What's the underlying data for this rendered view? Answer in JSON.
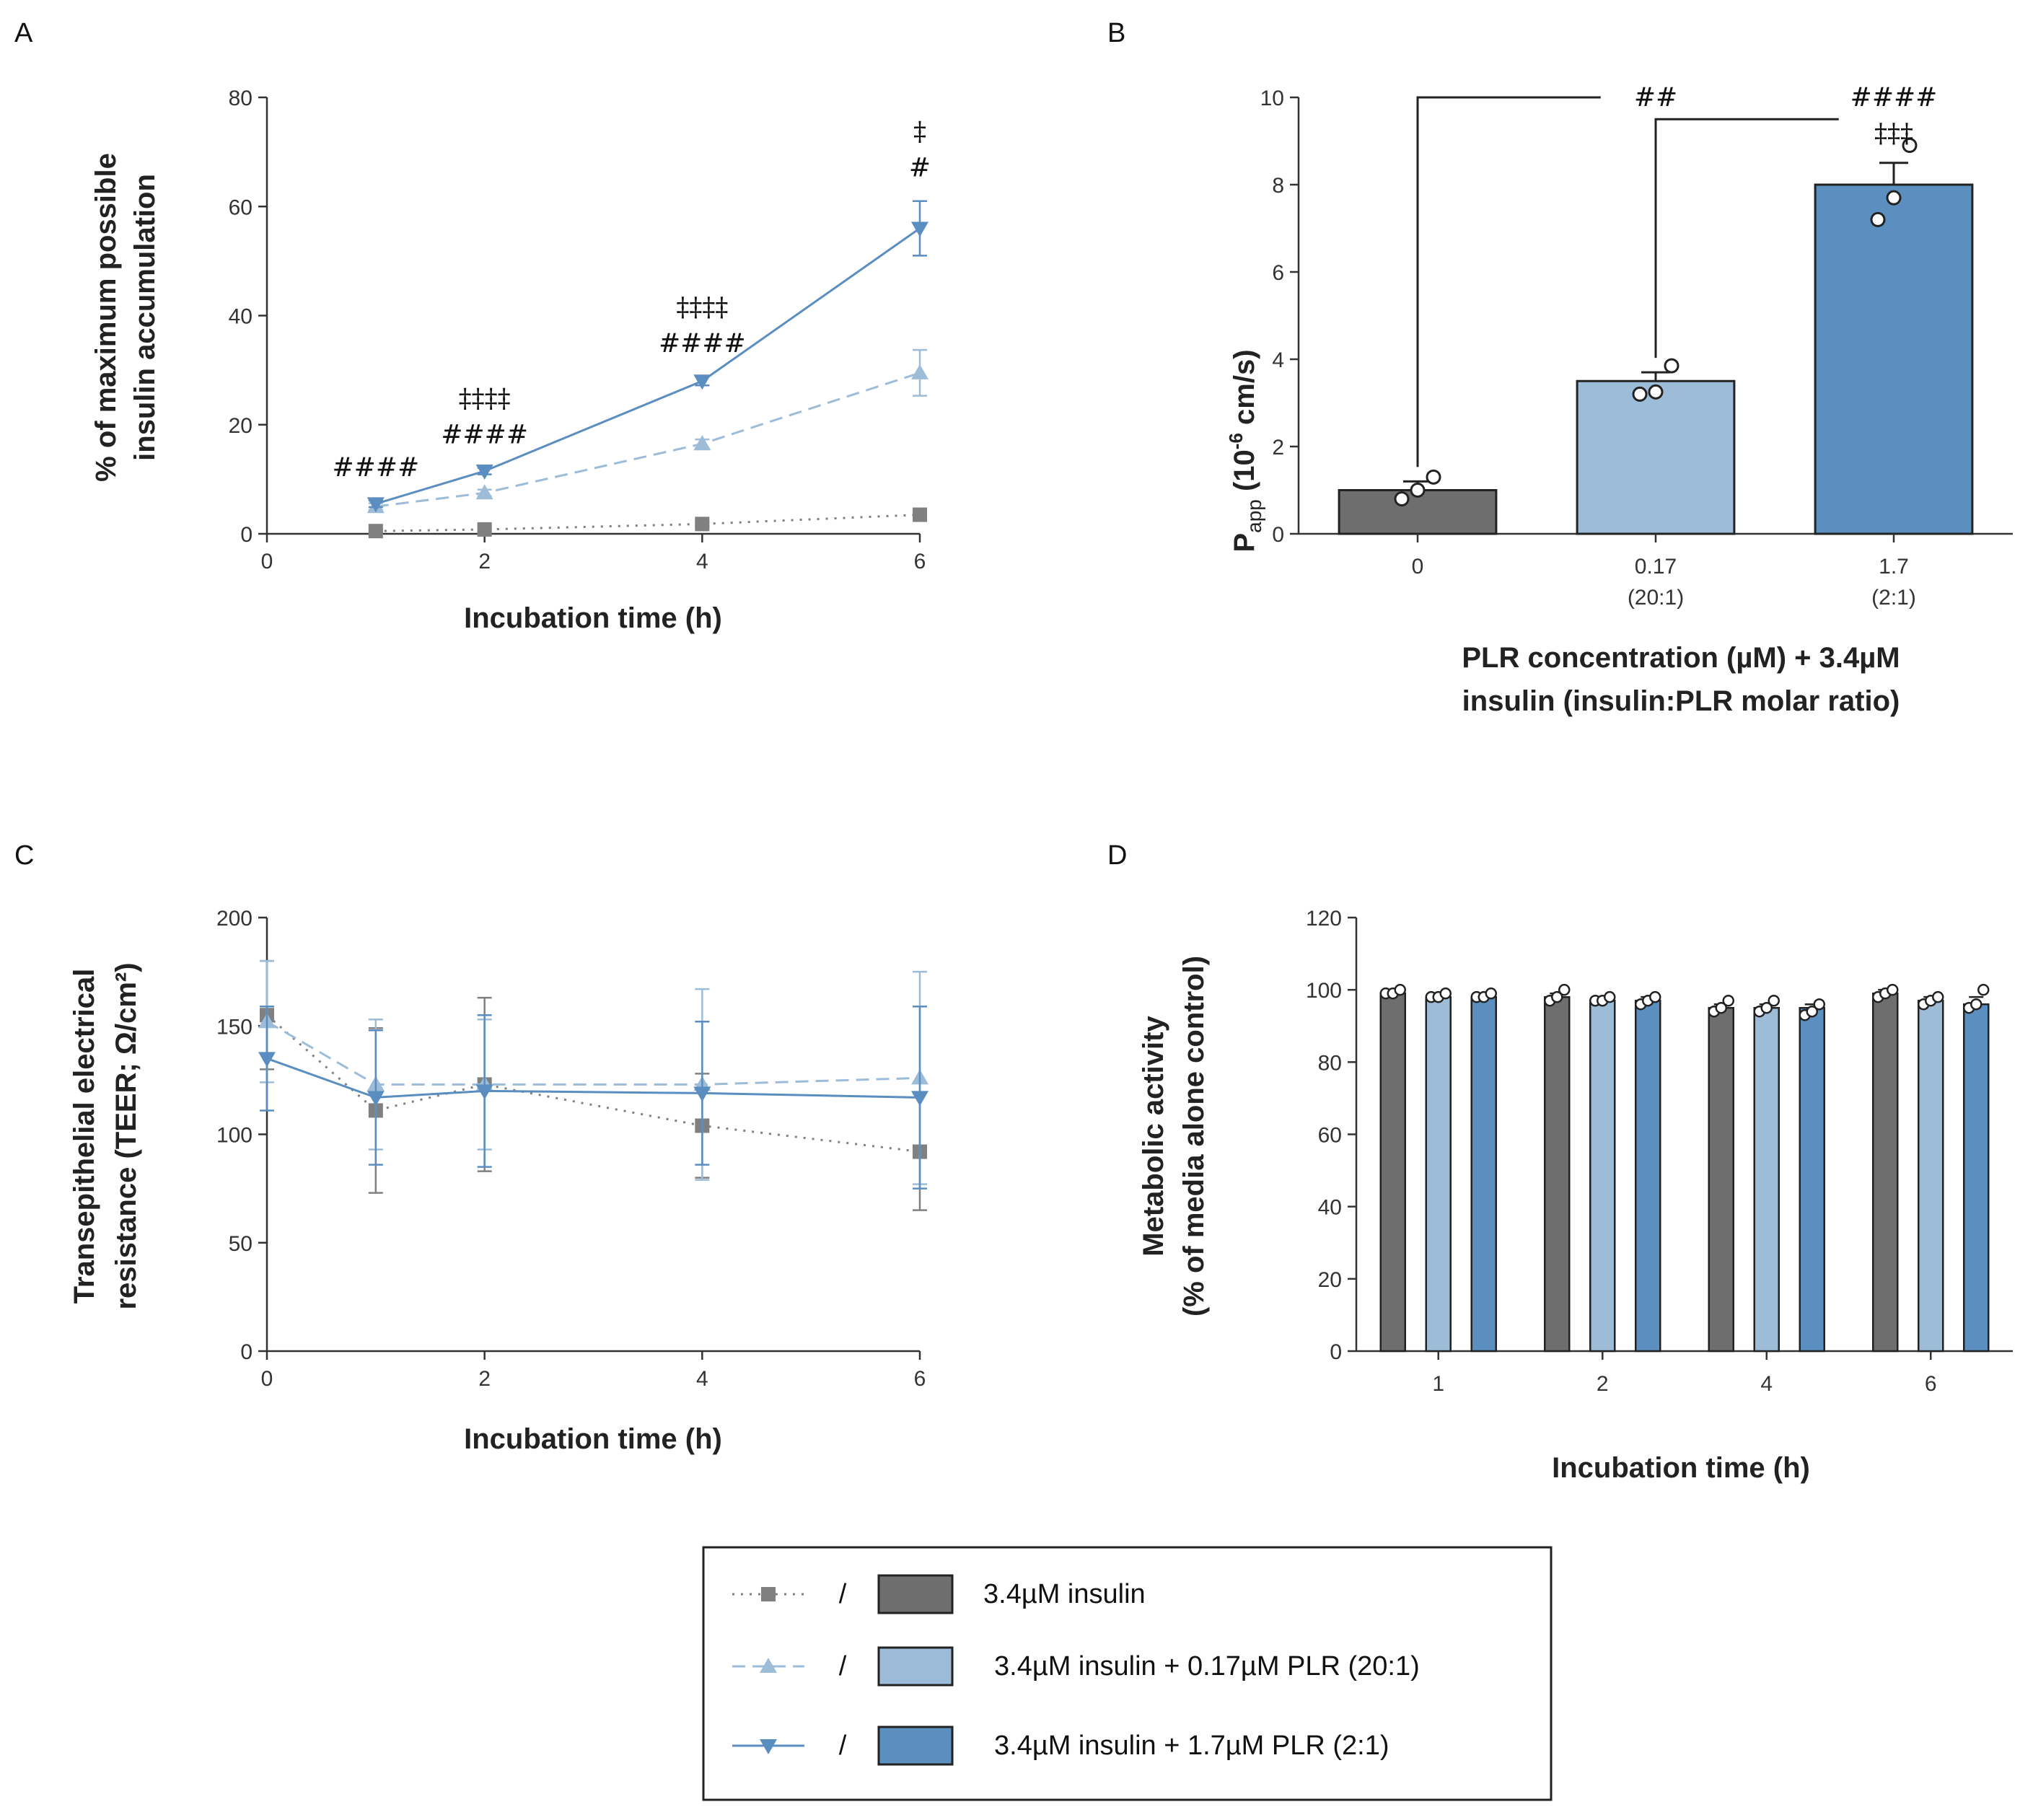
{
  "colors": {
    "insulin": "#808080",
    "insulin_dark_bar": "#6e6e6e",
    "plr_low": "#9dbcd8",
    "plr_high": "#5a8fbf",
    "line_high": "#5b8ec0",
    "axis": "#333333"
  },
  "chart_data": [
    {
      "id": "A",
      "type": "line",
      "panel_label": "A",
      "xlabel": "Incubation time (h)",
      "ylabel_lines": [
        "% of maximum possible",
        "insulin accumulation"
      ],
      "xlim": [
        0,
        6
      ],
      "ylim": [
        0,
        80
      ],
      "xticks": [
        "0",
        "2",
        "4",
        "6"
      ],
      "yticks": [
        "0",
        "20",
        "40",
        "60",
        "80"
      ],
      "x": [
        1,
        2,
        4,
        6
      ],
      "series": [
        {
          "name": "3.4µM insulin",
          "values": [
            0.5,
            0.8,
            1.8,
            3.5
          ],
          "err": [
            0.3,
            0.3,
            0.4,
            0.6
          ],
          "marker": "square",
          "dash": "dotted"
        },
        {
          "name": "3.4µM insulin + 0.17µM PLR (20:1)",
          "values": [
            5.0,
            7.5,
            16.5,
            29.5
          ],
          "err": [
            0.6,
            0.6,
            0.8,
            4.2
          ],
          "marker": "triangle-up",
          "dash": "dashed"
        },
        {
          "name": "3.4µM insulin + 1.7µM PLR (2:1)",
          "values": [
            5.5,
            11.5,
            28.0,
            56.0
          ],
          "err": [
            0.6,
            0.6,
            0.8,
            5.0
          ],
          "marker": "triangle-down",
          "dash": "solid"
        }
      ],
      "annotations": [
        {
          "x": 1,
          "lines": [
            "####"
          ]
        },
        {
          "x": 2,
          "lines": [
            "‡‡‡‡",
            "####"
          ]
        },
        {
          "x": 4,
          "lines": [
            "‡‡‡‡",
            "####"
          ]
        },
        {
          "x": 6,
          "lines": [
            "‡",
            "#"
          ]
        }
      ]
    },
    {
      "id": "B",
      "type": "bar",
      "panel_label": "B",
      "xlabel_lines": [
        "PLR concentration (µM) + 3.4µM",
        "insulin (insulin:PLR molar ratio)"
      ],
      "ylabel_main": "P",
      "ylabel_sub": "app",
      "ylabel_mid": " (10",
      "ylabel_sup": "-6",
      "ylabel_end": " cm/s)",
      "ylim": [
        0,
        10
      ],
      "yticks": [
        "0",
        "2",
        "4",
        "6",
        "8",
        "10"
      ],
      "categories": [
        "0",
        "0.17",
        "1.7"
      ],
      "category_sublabels": [
        "",
        "(20:1)",
        "(2:1)"
      ],
      "values": [
        1.0,
        3.5,
        8.0
      ],
      "err": [
        0.2,
        0.2,
        0.5
      ],
      "points": [
        [
          0.8,
          1.0,
          1.3
        ],
        [
          3.2,
          3.25,
          3.85
        ],
        [
          7.2,
          7.7,
          8.9
        ]
      ],
      "brackets": [
        {
          "from": 0,
          "to": 1,
          "y": 10.0,
          "label": "##"
        },
        {
          "from": 1,
          "to": 2,
          "y": 9.5,
          "label": ""
        }
      ],
      "annotations": [
        {
          "category": 2,
          "lines": [
            "####",
            "‡‡‡"
          ]
        }
      ]
    },
    {
      "id": "C",
      "type": "line",
      "panel_label": "C",
      "xlabel": "Incubation time (h)",
      "ylabel_lines": [
        "Transepithelial  electrical",
        "resistance (TEER; Ω/cm²)"
      ],
      "xlim": [
        0,
        6
      ],
      "ylim": [
        0,
        200
      ],
      "xticks": [
        "0",
        "2",
        "4",
        "6"
      ],
      "yticks": [
        "0",
        "50",
        "100",
        "150",
        "200"
      ],
      "x": [
        0,
        1,
        2,
        4,
        6
      ],
      "series": [
        {
          "name": "3.4µM insulin",
          "values": [
            155,
            111,
            123,
            104,
            92
          ],
          "err": [
            25,
            38,
            40,
            24,
            27
          ],
          "marker": "square",
          "dash": "dotted"
        },
        {
          "name": "3.4µM insulin + 0.17µM PLR (20:1)",
          "values": [
            152,
            123,
            123,
            123,
            126
          ],
          "err": [
            28,
            30,
            30,
            44,
            49
          ],
          "marker": "triangle-up",
          "dash": "dashed"
        },
        {
          "name": "3.4µM insulin + 1.7µM PLR (2:1)",
          "values": [
            135,
            117,
            120,
            119,
            117
          ],
          "err": [
            24,
            31,
            35,
            33,
            42
          ],
          "marker": "triangle-down",
          "dash": "solid"
        }
      ]
    },
    {
      "id": "D",
      "type": "bar",
      "panel_label": "D",
      "xlabel": "Incubation time (h)",
      "ylabel_lines": [
        "Metabolic activity",
        "(% of media alone control)"
      ],
      "ylim": [
        0,
        120
      ],
      "yticks": [
        "0",
        "20",
        "40",
        "60",
        "80",
        "100",
        "120"
      ],
      "categories": [
        "1",
        "2",
        "4",
        "6"
      ],
      "series": [
        {
          "name": "3.4µM insulin",
          "values": [
            99,
            98,
            95,
            99
          ],
          "err": [
            1,
            1,
            1,
            1
          ]
        },
        {
          "name": "3.4µM insulin + 0.17µM PLR (20:1)",
          "values": [
            98,
            97,
            95,
            97
          ],
          "err": [
            1,
            1,
            1,
            1
          ]
        },
        {
          "name": "3.4µM insulin + 1.7µM PLR (2:1)",
          "values": [
            98,
            97,
            95,
            96
          ],
          "err": [
            1,
            1,
            1,
            2
          ]
        }
      ],
      "points": [
        [
          [
            99,
            99,
            100
          ],
          [
            98,
            98,
            99
          ],
          [
            98,
            98,
            99
          ]
        ],
        [
          [
            97,
            98,
            100
          ],
          [
            97,
            97,
            98
          ],
          [
            96,
            97,
            98
          ]
        ],
        [
          [
            94,
            95,
            97
          ],
          [
            94,
            95,
            97
          ],
          [
            93,
            94,
            96
          ]
        ],
        [
          [
            98,
            99,
            100
          ],
          [
            96,
            97,
            98
          ],
          [
            95,
            96,
            100
          ]
        ]
      ]
    }
  ],
  "legend": {
    "separator": "/",
    "entries": [
      "3.4µM insulin",
      "3.4µM insulin + 0.17µM PLR (20:1)",
      "3.4µM insulin + 1.7µM PLR (2:1)"
    ]
  }
}
